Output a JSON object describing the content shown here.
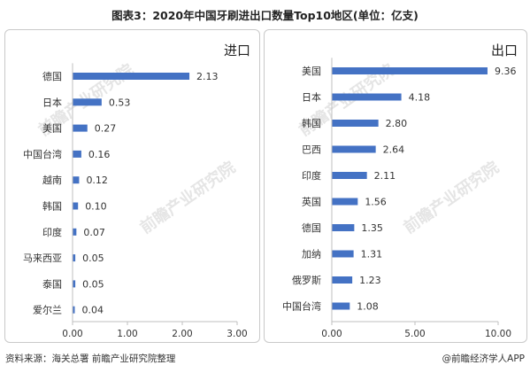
{
  "page": {
    "title": "图表3：2020年中国牙刷进出口数量Top10地区(单位：亿支)",
    "source": "资料来源：海关总署 前瞻产业研究院整理",
    "credit": "@前瞻经济学人APP",
    "watermark": "前瞻产业研究院"
  },
  "colors": {
    "bar": "#4472c4",
    "axis": "#bfbfbf"
  },
  "chart_data": [
    {
      "type": "bar",
      "orientation": "horizontal",
      "panel_title": "进口",
      "categories": [
        "德国",
        "日本",
        "美国",
        "中国台湾",
        "越南",
        "韩国",
        "印度",
        "马来西亚",
        "泰国",
        "爱尔兰"
      ],
      "values": [
        2.13,
        0.53,
        0.27,
        0.16,
        0.12,
        0.1,
        0.07,
        0.05,
        0.05,
        0.04
      ],
      "value_labels": [
        "2.13",
        "0.53",
        "0.27",
        "0.16",
        "0.12",
        "0.10",
        "0.07",
        "0.05",
        "0.05",
        "0.04"
      ],
      "xlim": [
        0,
        3
      ],
      "ticks": [
        "0.00",
        "1.00",
        "2.00",
        "3.00"
      ],
      "grid": false
    },
    {
      "type": "bar",
      "orientation": "horizontal",
      "panel_title": "出口",
      "categories": [
        "美国",
        "日本",
        "韩国",
        "巴西",
        "印度",
        "英国",
        "德国",
        "加纳",
        "俄罗斯",
        "中国台湾"
      ],
      "values": [
        9.36,
        4.18,
        2.8,
        2.64,
        2.11,
        1.56,
        1.35,
        1.31,
        1.23,
        1.08
      ],
      "value_labels": [
        "9.36",
        "4.18",
        "2.80",
        "2.64",
        "2.11",
        "1.56",
        "1.35",
        "1.31",
        "1.23",
        "1.08"
      ],
      "xlim": [
        0,
        10
      ],
      "ticks": [
        "0.00",
        "5.00",
        "10.00"
      ],
      "grid": false
    }
  ]
}
